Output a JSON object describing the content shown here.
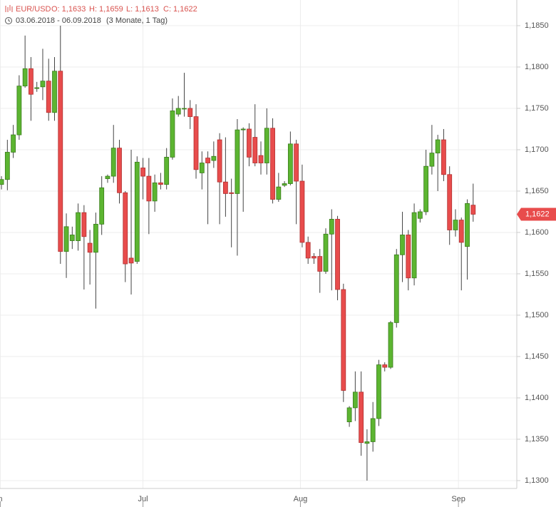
{
  "chart_data": {
    "type": "candlestick",
    "symbol": "EUR/USD",
    "header_open": "O: 1,1633",
    "header_high": "H: 1,1659",
    "header_low": "L: 1,1613",
    "header_close": "C: 1,1622",
    "period": "03.06.2018 - 06.09.2018",
    "period_note": "(3 Monate, 1 Tag)",
    "last_label": "1,1622",
    "up_color": "#5cb531",
    "down_color": "#e84c4c",
    "grid": true,
    "categories": [
      null,
      null,
      null,
      null,
      null,
      null,
      null,
      null,
      null,
      null,
      null,
      null,
      null,
      null,
      null,
      null,
      null,
      null,
      null,
      null,
      null,
      null,
      null,
      null,
      null,
      null,
      null,
      null,
      null,
      null,
      null,
      null,
      null,
      null,
      null,
      null,
      null,
      null,
      null,
      null,
      null,
      null,
      null,
      null,
      null,
      null,
      null,
      null,
      null,
      null,
      null,
      null,
      null,
      null,
      null,
      null,
      null,
      null,
      null,
      null,
      null,
      null,
      null,
      null,
      null,
      null,
      null,
      null,
      null,
      null,
      null,
      null,
      null,
      null,
      null,
      null,
      null,
      null,
      null,
      null,
      null
    ],
    "open": [
      1.1658,
      1.1664,
      1.1697,
      1.1718,
      1.1777,
      1.1798,
      1.1774,
      1.1776,
      1.1783,
      1.1745,
      1.1795,
      1.1577,
      1.159,
      1.159,
      1.1624,
      1.1587,
      1.1576,
      1.161,
      1.1665,
      1.1668,
      1.1702,
      1.1648,
      1.1569,
      1.1565,
      1.1678,
      1.1668,
      1.1638,
      1.166,
      1.1658,
      1.1691,
      1.1743,
      1.175,
      1.175,
      1.174,
      1.1672,
      1.169,
      1.1687,
      1.1712,
      1.1661,
      1.1648,
      1.1647,
      1.1724,
      1.1725,
      1.1715,
      1.1693,
      1.1684,
      1.1726,
      1.164,
      1.1657,
      1.1659,
      1.1707,
      1.1662,
      1.1588,
      1.1571,
      1.1571,
      1.1553,
      1.1598,
      1.1616,
      1.1531,
      1.1371,
      1.1388,
      1.1407,
      1.1345,
      1.1347,
      1.1375,
      1.144,
      1.1437,
      1.1491,
      1.1573,
      1.1597,
      1.1545,
      1.1617,
      1.1625,
      1.168,
      1.1696,
      1.1712,
      1.167,
      1.1603,
      1.1615,
      1.1583,
      1.1633
    ],
    "high": [
      1.1668,
      1.1712,
      1.173,
      1.179,
      1.1838,
      1.1812,
      1.1782,
      1.1822,
      1.181,
      1.1812,
      1.185,
      1.1623,
      1.1607,
      1.1635,
      1.1633,
      1.1603,
      1.1624,
      1.1668,
      1.167,
      1.173,
      1.1712,
      1.165,
      1.17,
      1.1692,
      1.169,
      1.169,
      1.167,
      1.1672,
      1.1702,
      1.1762,
      1.1765,
      1.1793,
      1.176,
      1.1755,
      1.1698,
      1.1698,
      1.171,
      1.172,
      1.1715,
      1.1665,
      1.1737,
      1.1727,
      1.1732,
      1.1755,
      1.171,
      1.175,
      1.1738,
      1.1672,
      1.1662,
      1.1722,
      1.1712,
      1.1682,
      1.1595,
      1.1575,
      1.158,
      1.1605,
      1.1628,
      1.162,
      1.1538,
      1.139,
      1.1432,
      1.1432,
      1.1362,
      1.1395,
      1.1446,
      1.1443,
      1.1493,
      1.158,
      1.1625,
      1.1603,
      1.1635,
      1.1628,
      1.17,
      1.173,
      1.1718,
      1.1725,
      1.168,
      1.1628,
      1.1618,
      1.164,
      1.1659
    ],
    "low": [
      1.1652,
      1.1651,
      1.169,
      1.1712,
      1.1775,
      1.1735,
      1.177,
      1.176,
      1.1735,
      1.1735,
      1.1562,
      1.1545,
      1.158,
      1.1578,
      1.1531,
      1.1537,
      1.1508,
      1.1597,
      1.166,
      1.166,
      1.1635,
      1.154,
      1.1525,
      1.1562,
      1.164,
      1.1598,
      1.1625,
      1.1652,
      1.1652,
      1.1688,
      1.174,
      1.174,
      1.1725,
      1.1665,
      1.1652,
      1.161,
      1.1678,
      1.161,
      1.1619,
      1.1582,
      1.1572,
      1.1625,
      1.168,
      1.168,
      1.167,
      1.167,
      1.1635,
      1.1637,
      1.1655,
      1.1657,
      1.161,
      1.1582,
      1.1562,
      1.1562,
      1.1527,
      1.155,
      1.153,
      1.1518,
      1.1395,
      1.1365,
      1.1372,
      1.133,
      1.13,
      1.1335,
      1.1366,
      1.1432,
      1.1435,
      1.1485,
      1.154,
      1.153,
      1.1536,
      1.1612,
      1.1621,
      1.167,
      1.165,
      1.1662,
      1.1585,
      1.1595,
      1.153,
      1.1543,
      1.1613
    ],
    "close": [
      1.1664,
      1.1697,
      1.1718,
      1.1777,
      1.1798,
      1.1767,
      1.1775,
      1.1783,
      1.1745,
      1.1795,
      1.1577,
      1.1607,
      1.1597,
      1.1624,
      1.1595,
      1.1576,
      1.161,
      1.1654,
      1.1668,
      1.1702,
      1.1648,
      1.1562,
      1.1563,
      1.1685,
      1.1668,
      1.1638,
      1.166,
      1.1658,
      1.1691,
      1.1747,
      1.175,
      1.175,
      1.174,
      1.1676,
      1.1684,
      1.1684,
      1.1692,
      1.1661,
      1.1647,
      1.1647,
      1.1724,
      1.1725,
      1.1691,
      1.1684,
      1.1684,
      1.1726,
      1.164,
      1.1655,
      1.1659,
      1.1707,
      1.1662,
      1.1588,
      1.1569,
      1.1569,
      1.1553,
      1.1598,
      1.1616,
      1.1531,
      1.1409,
      1.1388,
      1.1407,
      1.1346,
      1.1347,
      1.1375,
      1.144,
      1.1437,
      1.1491,
      1.1573,
      1.1597,
      1.1545,
      1.1624,
      1.1625,
      1.168,
      1.1696,
      1.1712,
      1.167,
      1.1603,
      1.1615,
      1.1588,
      1.1635,
      1.1622
    ],
    "xlim": [
      -0.25,
      87.4
    ],
    "xticks": [
      {
        "value": -0.2,
        "label": "n"
      },
      {
        "value": 24,
        "label": "Jul"
      },
      {
        "value": 50.7,
        "label": "Aug"
      },
      {
        "value": 77.5,
        "label": "Sep"
      }
    ],
    "ylim": [
      1.12905,
      1.1881
    ],
    "yticks": [
      {
        "value": 1.13,
        "label": "1,1300"
      },
      {
        "value": 1.135,
        "label": "1,1350"
      },
      {
        "value": 1.14,
        "label": "1,1400"
      },
      {
        "value": 1.145,
        "label": "1,1450"
      },
      {
        "value": 1.15,
        "label": "1,1500"
      },
      {
        "value": 1.155,
        "label": "1,1550"
      },
      {
        "value": 1.16,
        "label": "1,1600"
      },
      {
        "value": 1.165,
        "label": "1,1650"
      },
      {
        "value": 1.17,
        "label": "1,1700"
      },
      {
        "value": 1.175,
        "label": "1,1750"
      },
      {
        "value": 1.18,
        "label": "1,1800"
      },
      {
        "value": 1.185,
        "label": "1,1850"
      }
    ]
  }
}
